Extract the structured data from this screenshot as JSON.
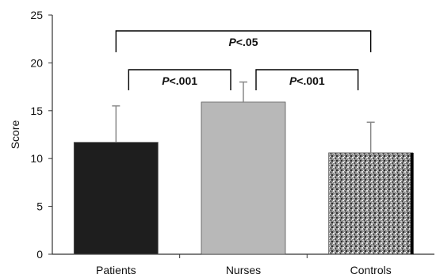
{
  "chart_data": {
    "type": "bar",
    "categories": [
      "Patients",
      "Nurses",
      "Controls"
    ],
    "values": [
      11.7,
      15.9,
      10.6
    ],
    "errors": [
      3.8,
      2.1,
      3.2
    ],
    "ylabel": "Score",
    "ylim": [
      0,
      25
    ],
    "yticks": [
      0,
      5,
      10,
      15,
      20,
      25
    ],
    "bar_fills": [
      "#1e1e1e",
      "#b8b8b8",
      "stipple-gray"
    ],
    "grid": false,
    "comparisons": [
      {
        "from": 0,
        "to": 2,
        "p": "P",
        "label": "<.05"
      },
      {
        "from": 0,
        "to": 1,
        "p": "P",
        "label": "<.001"
      },
      {
        "from": 1,
        "to": 2,
        "p": "P",
        "label": "<.001"
      }
    ]
  }
}
